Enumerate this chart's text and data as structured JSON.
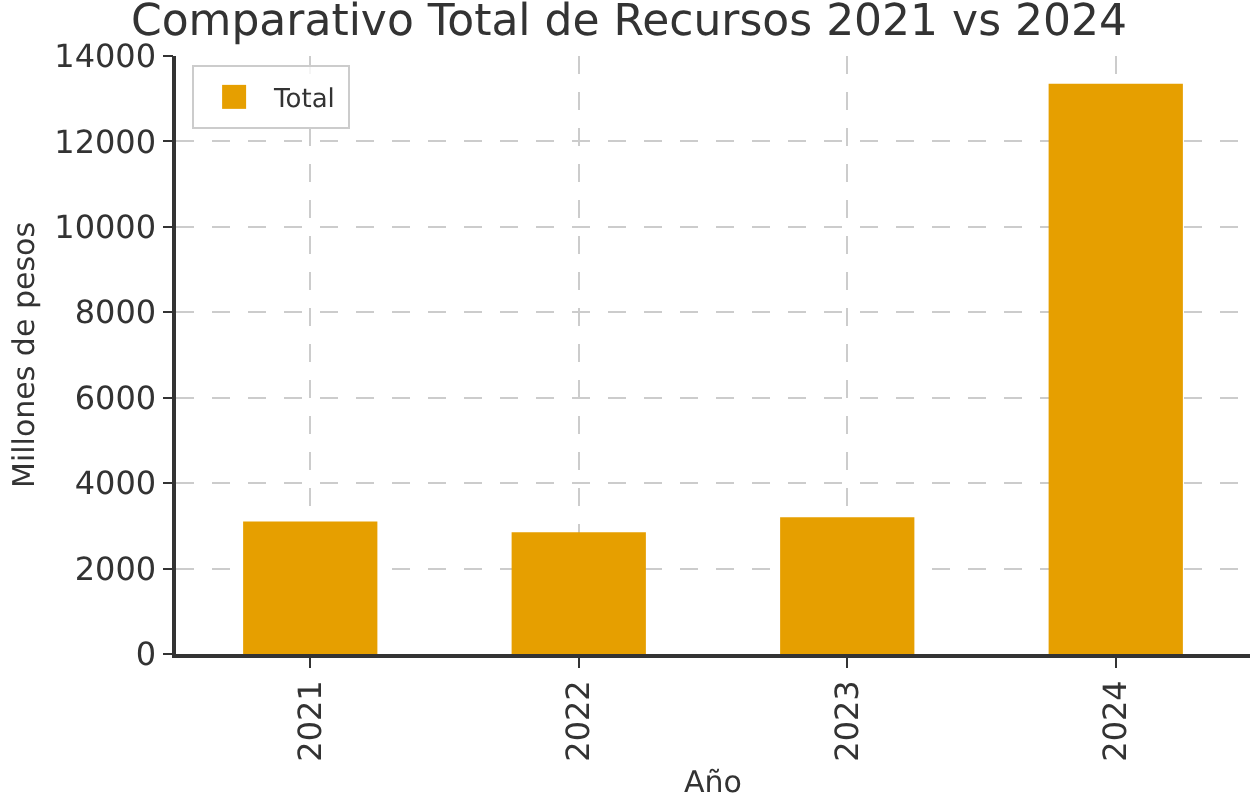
{
  "chart_data": {
    "type": "bar",
    "title": "Comparativo Total de Recursos 2021 vs 2024",
    "xlabel": "Año",
    "ylabel": "Millones de pesos",
    "categories": [
      "2021",
      "2022",
      "2023",
      "2024"
    ],
    "series": [
      {
        "name": "Total",
        "color": "#e69f00",
        "values": [
          3100,
          2850,
          3200,
          13350
        ]
      }
    ],
    "ylim": [
      0,
      14000
    ],
    "yticks": [
      0,
      2000,
      4000,
      6000,
      8000,
      10000,
      12000,
      14000
    ],
    "grid": true,
    "legend": "top left"
  }
}
